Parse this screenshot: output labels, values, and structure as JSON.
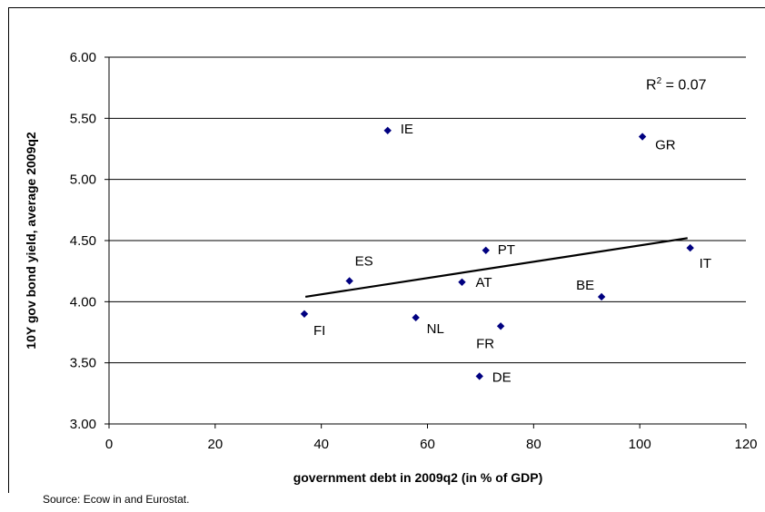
{
  "chart_data": {
    "type": "scatter",
    "xlabel": "government debt in 2009q2 (in % of GDP)",
    "ylabel": "10Y gov bond yield, average 2009q2",
    "xlim": [
      0,
      120
    ],
    "ylim": [
      3.0,
      6.0
    ],
    "x_ticks": [
      "0",
      "20",
      "40",
      "60",
      "80",
      "100",
      "120"
    ],
    "y_ticks": [
      "3.00",
      "3.50",
      "4.00",
      "4.50",
      "5.00",
      "5.50",
      "6.00"
    ],
    "grid": "horizontal",
    "marker_color": "#000080",
    "points": [
      {
        "label": "IE",
        "x": 52.5,
        "y": 5.4
      },
      {
        "label": "GR",
        "x": 100.5,
        "y": 5.35
      },
      {
        "label": "ES",
        "x": 45.3,
        "y": 4.17
      },
      {
        "label": "PT",
        "x": 71.0,
        "y": 4.42
      },
      {
        "label": "IT",
        "x": 109.5,
        "y": 4.44
      },
      {
        "label": "AT",
        "x": 66.5,
        "y": 4.16
      },
      {
        "label": "BE",
        "x": 92.8,
        "y": 4.04
      },
      {
        "label": "FI",
        "x": 36.8,
        "y": 3.9
      },
      {
        "label": "NL",
        "x": 57.8,
        "y": 3.87
      },
      {
        "label": "FR",
        "x": 73.8,
        "y": 3.8
      },
      {
        "label": "DE",
        "x": 69.8,
        "y": 3.39
      }
    ],
    "trendline": {
      "x": [
        37,
        109
      ],
      "y": [
        4.04,
        4.52
      ]
    },
    "annotation": {
      "r2_prefix": "R",
      "r2_exp": "2",
      "r2_value": " = 0.07"
    }
  },
  "source_note": "Source: Ecow in and Eurostat."
}
